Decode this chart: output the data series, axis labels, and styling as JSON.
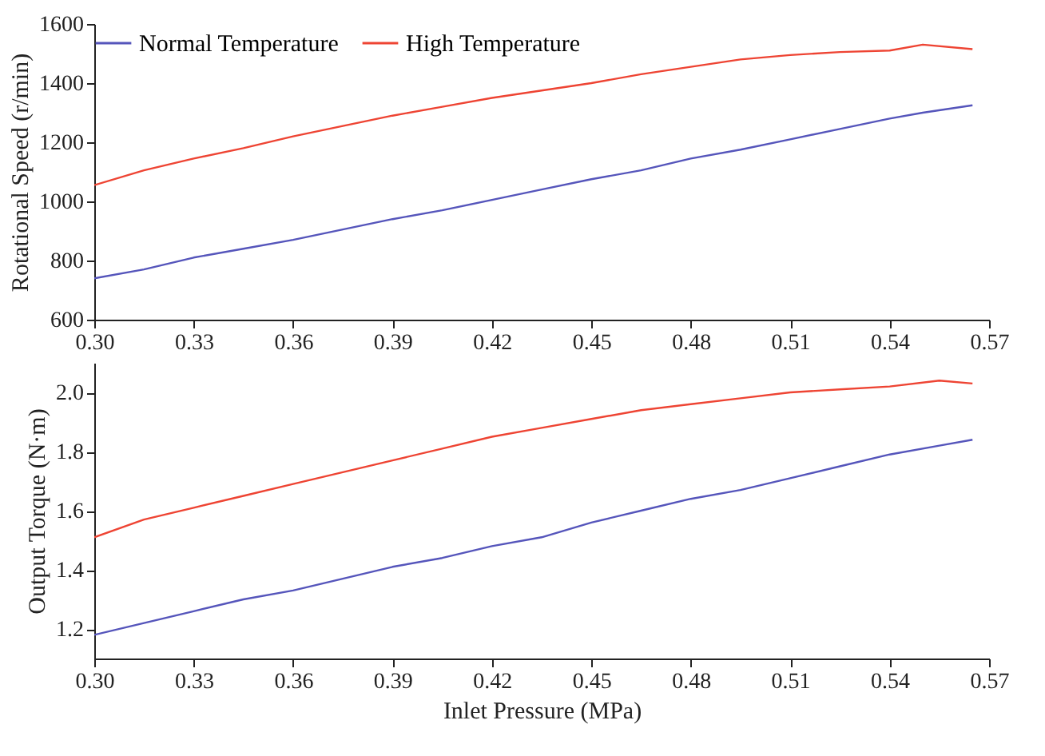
{
  "chart_data": [
    {
      "type": "line",
      "ylabel": "Rotational Speed (r/min)",
      "x": [
        0.3,
        0.315,
        0.33,
        0.345,
        0.36,
        0.375,
        0.39,
        0.405,
        0.42,
        0.435,
        0.45,
        0.465,
        0.48,
        0.495,
        0.51,
        0.525,
        0.54,
        0.55,
        0.565
      ],
      "xlim": [
        0.3,
        0.57
      ],
      "xticks": [
        {
          "value": 0.3,
          "label": "0.30"
        },
        0.33,
        0.36,
        0.39,
        0.42,
        0.45,
        0.48,
        0.51,
        0.54,
        0.57
      ],
      "ylim": [
        600,
        1600
      ],
      "yticks": [
        600,
        800,
        1000,
        1200,
        1400,
        1600
      ],
      "grid": false,
      "legend": "top",
      "marker": "none",
      "line_style": "solid",
      "series": [
        {
          "name": "Normal Temperature",
          "color": "#5555bb",
          "values": [
            740,
            770,
            810,
            840,
            870,
            905,
            940,
            970,
            1005,
            1040,
            1075,
            1105,
            1145,
            1175,
            1210,
            1245,
            1280,
            1300,
            1325
          ]
        },
        {
          "name": "High Temperature",
          "color": "#ee4433",
          "values": [
            1055,
            1105,
            1145,
            1180,
            1220,
            1255,
            1290,
            1320,
            1350,
            1375,
            1400,
            1430,
            1455,
            1480,
            1495,
            1505,
            1510,
            1530,
            1515
          ]
        }
      ]
    },
    {
      "type": "line",
      "xlabel": "Inlet Pressure (MPa)",
      "ylabel": "Output Torque (N·m)",
      "x": [
        0.3,
        0.315,
        0.33,
        0.345,
        0.36,
        0.375,
        0.39,
        0.405,
        0.42,
        0.435,
        0.45,
        0.465,
        0.48,
        0.495,
        0.51,
        0.525,
        0.54,
        0.555,
        0.565
      ],
      "xlim": [
        0.3,
        0.57
      ],
      "xticks": [
        {
          "value": 0.3,
          "label": "0.30"
        },
        0.33,
        0.36,
        0.39,
        0.42,
        0.45,
        0.48,
        0.51,
        0.54,
        0.57
      ],
      "ylim": [
        1.1,
        2.1
      ],
      "yticks": [
        1.2,
        1.4,
        1.6,
        1.8,
        {
          "value": 2,
          "label": "2.0"
        }
      ],
      "grid": false,
      "legend": false,
      "marker": "none",
      "line_style": "solid",
      "series": [
        {
          "color": "#5555bb",
          "values": [
            1.18,
            1.22,
            1.26,
            1.3,
            1.33,
            1.37,
            1.41,
            1.44,
            1.48,
            1.51,
            1.56,
            1.6,
            1.64,
            1.67,
            1.71,
            1.75,
            1.79,
            1.82,
            1.84
          ]
        },
        {
          "color": "#ee4433",
          "values": [
            1.51,
            1.57,
            1.61,
            1.65,
            1.69,
            1.73,
            1.77,
            1.81,
            1.85,
            1.88,
            1.91,
            1.94,
            1.96,
            1.98,
            2.0,
            2.01,
            2.02,
            2.04,
            2.03
          ]
        }
      ]
    }
  ]
}
